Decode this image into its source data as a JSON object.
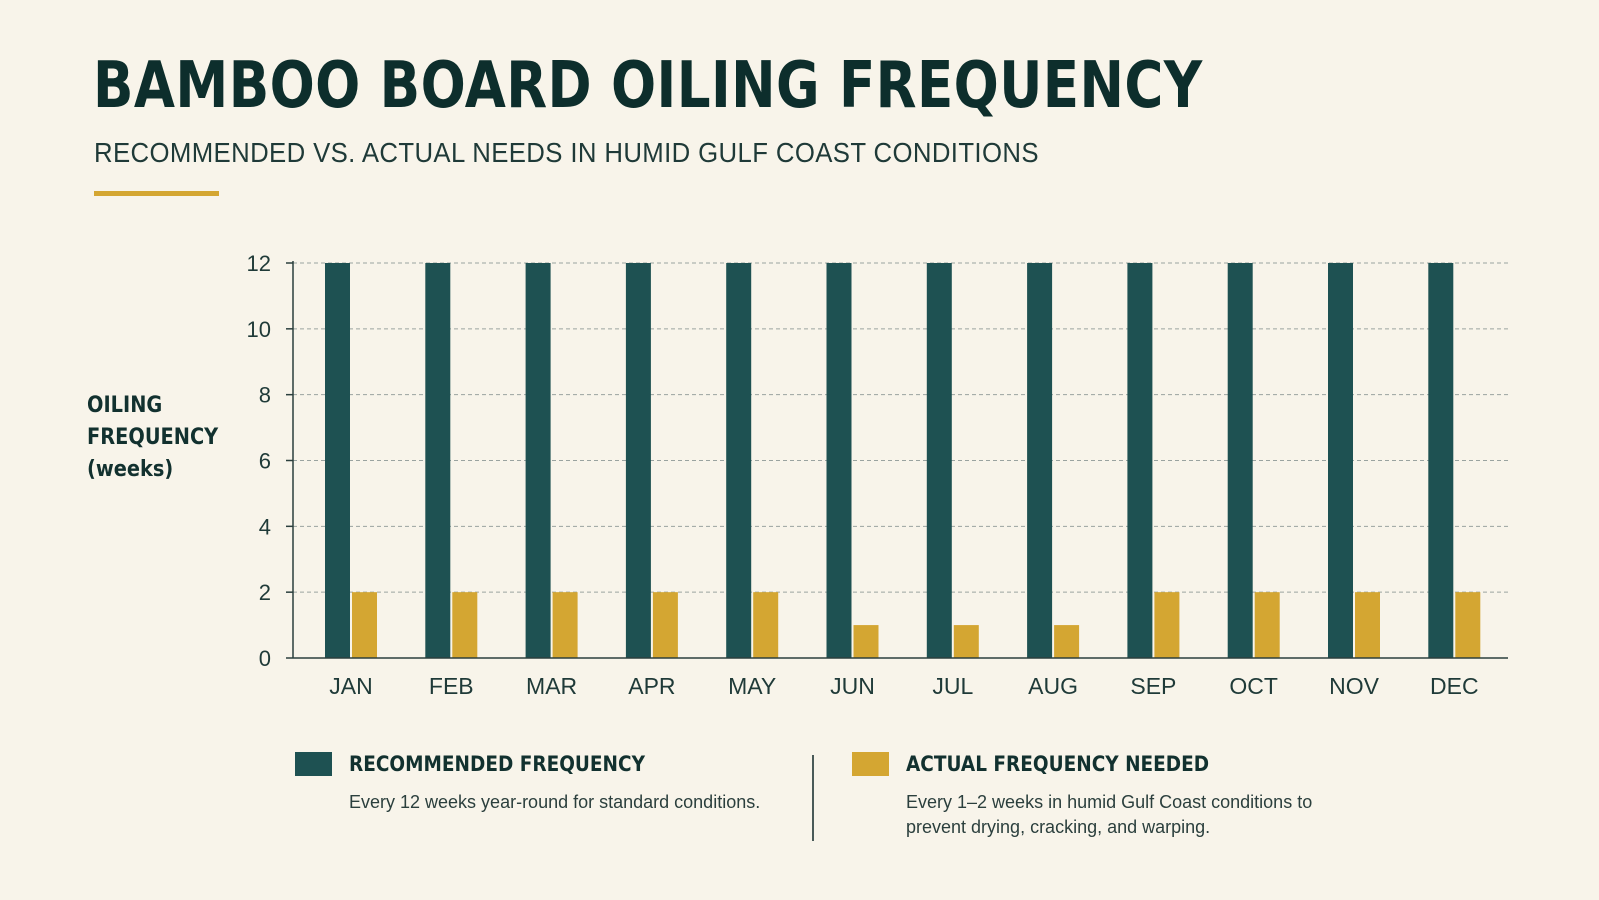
{
  "header": {
    "title": "BAMBOO BOARD OILING FREQUENCY",
    "subtitle": "RECOMMENDED VS. ACTUAL NEEDS IN HUMID GULF COAST CONDITIONS"
  },
  "colors": {
    "background": "#f8f4ea",
    "recommended": "#1e5152",
    "actual": "#d4a632",
    "accent_rule": "#d4a632",
    "text": "#12312f"
  },
  "chart_data": {
    "type": "bar",
    "title": "BAMBOO BOARD OILING FREQUENCY",
    "subtitle": "RECOMMENDED VS. ACTUAL NEEDS IN HUMID GULF COAST CONDITIONS",
    "xlabel": "",
    "ylabel": [
      "OILING",
      "FREQUENCY",
      "(weeks)"
    ],
    "categories": [
      "JAN",
      "FEB",
      "MAR",
      "APR",
      "MAY",
      "JUN",
      "JUL",
      "AUG",
      "SEP",
      "OCT",
      "NOV",
      "DEC"
    ],
    "series": [
      {
        "name": "RECOMMENDED FREQUENCY",
        "color": "#1e5152",
        "values": [
          12,
          12,
          12,
          12,
          12,
          12,
          12,
          12,
          12,
          12,
          12,
          12
        ]
      },
      {
        "name": "ACTUAL FREQUENCY NEEDED",
        "color": "#d4a632",
        "values": [
          2,
          2,
          2,
          2,
          2,
          1,
          1,
          1,
          2,
          2,
          2,
          2
        ]
      }
    ],
    "ylim": [
      0,
      12
    ],
    "yticks": [
      0,
      2,
      4,
      6,
      8,
      10,
      12
    ],
    "grid": true,
    "legend_position": "bottom"
  },
  "legend": {
    "recommended": {
      "title": "RECOMMENDED FREQUENCY",
      "description": "Every 12  weeks year-round for standard conditions."
    },
    "actual": {
      "title": "ACTUAL FREQUENCY NEEDED",
      "description": "Every 1–2 weeks in humid Gulf Coast conditions to prevent drying, cracking, and warping."
    }
  }
}
